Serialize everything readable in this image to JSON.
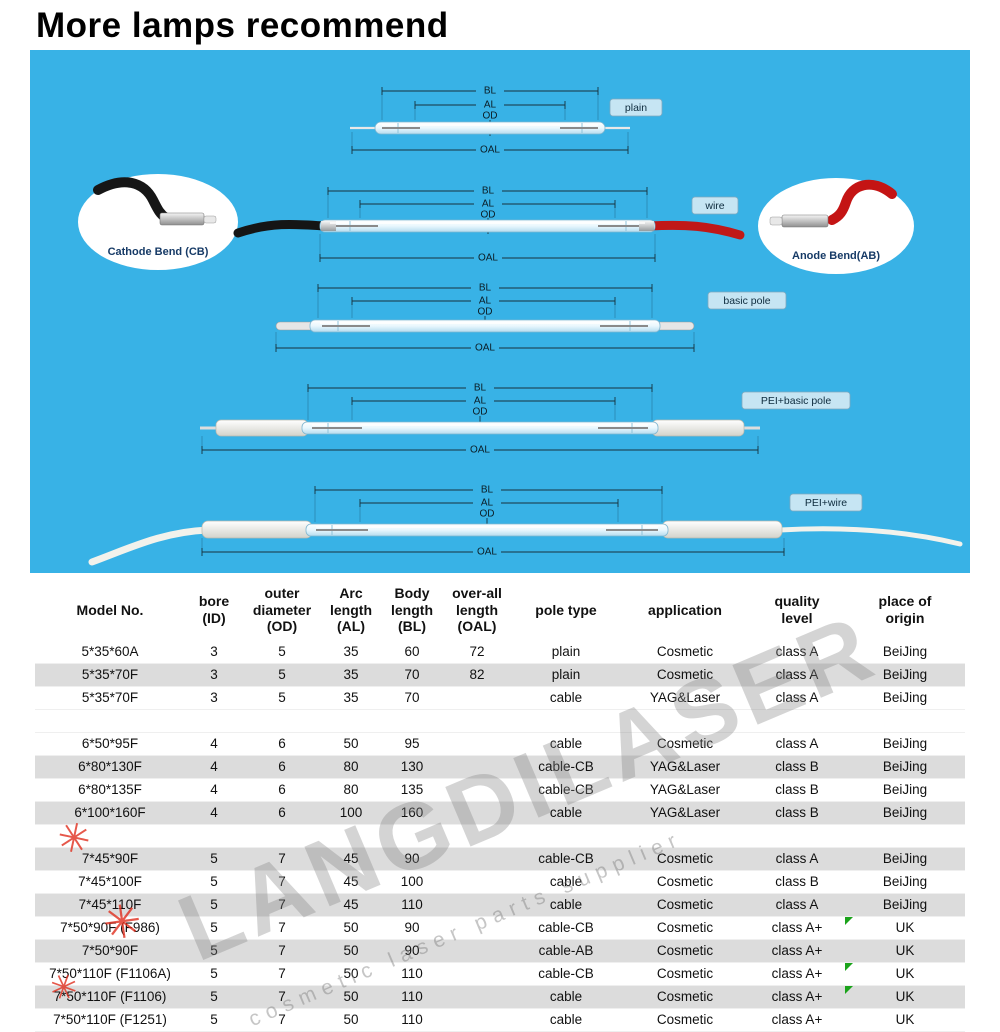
{
  "page": {
    "title": "More lamps recommend"
  },
  "diagram": {
    "dim": {
      "bl": "BL",
      "al": "AL",
      "od": "OD",
      "oal": "OAL"
    },
    "lamps": [
      {
        "label": "plain"
      },
      {
        "label": "wire"
      },
      {
        "label": "basic pole"
      },
      {
        "label": "PEI+basic pole"
      },
      {
        "label": "PEI+wire"
      }
    ],
    "callouts": {
      "cathode": "Cathode Bend (CB)",
      "anode": "Anode Bend(AB)"
    }
  },
  "watermark": {
    "brand": "LANGDILASER",
    "tagline": "cosmetic laser parts supplier",
    "star_glyph": "✳"
  },
  "table": {
    "headers": [
      "Model No.",
      "bore\n(ID)",
      "outer\ndiameter\n(OD)",
      "Arc\nlength\n(AL)",
      "Body\nlength\n(BL)",
      "over-all\nlength\n(OAL)",
      "pole type",
      "application",
      "quality\nlevel",
      "place of\norigin"
    ],
    "rows": [
      {
        "cells": [
          "5*35*60A",
          "3",
          "5",
          "35",
          "60",
          "72",
          "plain",
          "Cosmetic",
          "class A",
          "BeiJing"
        ],
        "shade": false
      },
      {
        "cells": [
          "5*35*70F",
          "3",
          "5",
          "35",
          "70",
          "82",
          "plain",
          "Cosmetic",
          "class A",
          "BeiJing"
        ],
        "shade": true
      },
      {
        "cells": [
          "5*35*70F",
          "3",
          "5",
          "35",
          "70",
          "",
          "cable",
          "YAG&Laser",
          "class A",
          "BeiJing"
        ],
        "shade": false
      },
      {
        "cells": [
          "",
          "",
          "",
          "",
          "",
          "",
          "",
          "",
          "",
          ""
        ],
        "shade": false,
        "blank": true
      },
      {
        "cells": [
          "6*50*95F",
          "4",
          "6",
          "50",
          "95",
          "",
          "cable",
          "Cosmetic",
          "class A",
          "BeiJing"
        ],
        "shade": false
      },
      {
        "cells": [
          "6*80*130F",
          "4",
          "6",
          "80",
          "130",
          "",
          "cable-CB",
          "YAG&Laser",
          "class B",
          "BeiJing"
        ],
        "shade": true
      },
      {
        "cells": [
          "6*80*135F",
          "4",
          "6",
          "80",
          "135",
          "",
          "cable-CB",
          "YAG&Laser",
          "class B",
          "BeiJing"
        ],
        "shade": false
      },
      {
        "cells": [
          "6*100*160F",
          "4",
          "6",
          "100",
          "160",
          "",
          "cable",
          "YAG&Laser",
          "class B",
          "BeiJing"
        ],
        "shade": true
      },
      {
        "cells": [
          "",
          "",
          "",
          "",
          "",
          "",
          "",
          "",
          "",
          ""
        ],
        "shade": false,
        "blank": true
      },
      {
        "cells": [
          "7*45*90F",
          "5",
          "7",
          "45",
          "90",
          "",
          "cable-CB",
          "Cosmetic",
          "class A",
          "BeiJing"
        ],
        "shade": true
      },
      {
        "cells": [
          "7*45*100F",
          "5",
          "7",
          "45",
          "100",
          "",
          "cable",
          "Cosmetic",
          "class B",
          "BeiJing"
        ],
        "shade": false
      },
      {
        "cells": [
          "7*45*110F",
          "5",
          "7",
          "45",
          "110",
          "",
          "cable",
          "Cosmetic",
          "class A",
          "BeiJing"
        ],
        "shade": true
      },
      {
        "cells": [
          "7*50*90F (F986)",
          "5",
          "7",
          "50",
          "90",
          "",
          "cable-CB",
          "Cosmetic",
          "class A+",
          "UK"
        ],
        "shade": false,
        "marker": true
      },
      {
        "cells": [
          "7*50*90F",
          "5",
          "7",
          "50",
          "90",
          "",
          "cable-AB",
          "Cosmetic",
          "class A+",
          "UK"
        ],
        "shade": true
      },
      {
        "cells": [
          "7*50*110F (F1106A)",
          "5",
          "7",
          "50",
          "110",
          "",
          "cable-CB",
          "Cosmetic",
          "class A+",
          "UK"
        ],
        "shade": false,
        "marker": true
      },
      {
        "cells": [
          "7*50*110F (F1106)",
          "5",
          "7",
          "50",
          "110",
          "",
          "cable",
          "Cosmetic",
          "class A+",
          "UK"
        ],
        "shade": true,
        "marker": true
      },
      {
        "cells": [
          "7*50*110F (F1251)",
          "5",
          "7",
          "50",
          "110",
          "",
          "cable",
          "Cosmetic",
          "class A+",
          "UK"
        ],
        "shade": false
      }
    ]
  }
}
